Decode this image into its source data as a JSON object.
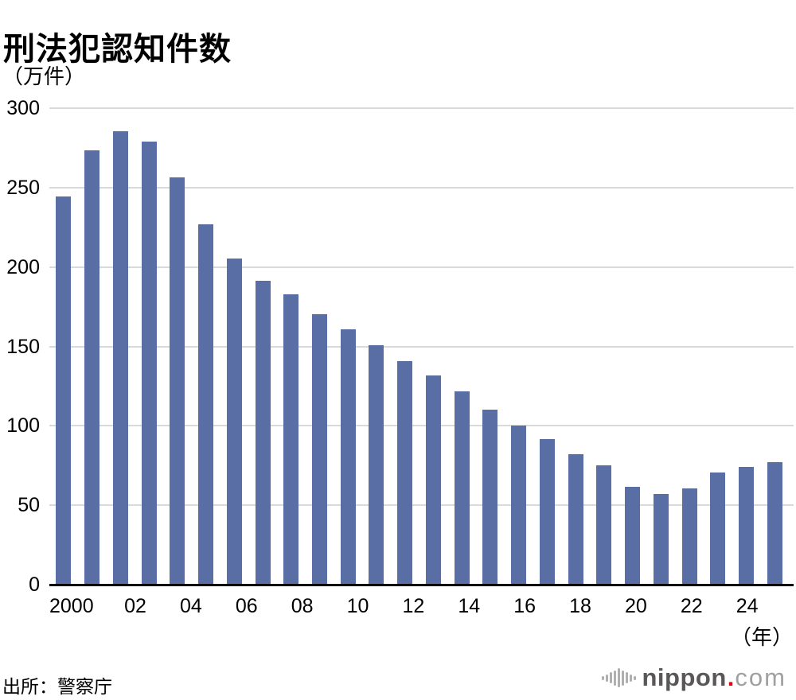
{
  "title": "刑法犯認知件数",
  "unit_label": "（万件）",
  "year_suffix": "（年）",
  "source": "出所：警察庁",
  "logo": {
    "name": "nippon.com",
    "wave_icon": "sound-wave-icon",
    "text_main": "nippon",
    "dot": ".",
    "text_suffix": "com"
  },
  "colors": {
    "bar": "#5a6ea6",
    "gridline": "#d9d9d9",
    "axis_line": "#000000",
    "text": "#000000",
    "logo_main": "#595757",
    "logo_suffix": "#9fa0a0",
    "logo_dot": "#e60012",
    "logo_wave": "#afafaf"
  },
  "chart_data": {
    "type": "bar",
    "title": "刑法犯認知件数",
    "ylabel": "（万件）",
    "xlabel": "（年）",
    "ylim": [
      0,
      300
    ],
    "yticks": [
      0,
      50,
      100,
      150,
      200,
      250,
      300
    ],
    "grid": "horizontal",
    "legend": "none",
    "x": [
      2000,
      2001,
      2002,
      2003,
      2004,
      2005,
      2006,
      2007,
      2008,
      2009,
      2010,
      2011,
      2012,
      2013,
      2014,
      2015,
      2016,
      2017,
      2018,
      2019,
      2020,
      2021,
      2022,
      2023,
      2024,
      2025
    ],
    "xtick_labels": [
      "2000",
      "",
      "02",
      "",
      "04",
      "",
      "06",
      "",
      "08",
      "",
      "10",
      "",
      "12",
      "",
      "14",
      "",
      "16",
      "",
      "18",
      "",
      "20",
      "",
      "22",
      "",
      "24",
      ""
    ],
    "values": [
      244.4,
      273.6,
      285.4,
      279.0,
      256.3,
      226.9,
      205.1,
      190.9,
      182.7,
      170.3,
      160.4,
      150.3,
      140.3,
      131.4,
      121.2,
      109.9,
      99.6,
      91.5,
      81.7,
      74.9,
      61.4,
      56.8,
      60.1,
      70.3,
      73.7,
      77.0
    ]
  }
}
